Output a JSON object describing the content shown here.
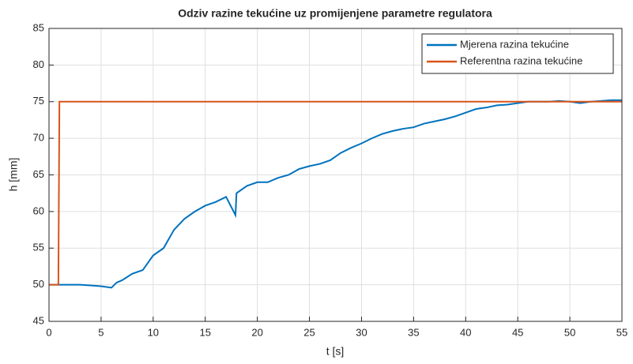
{
  "chart_data": {
    "type": "line",
    "title": "Odziv razine tekućine uz promijenjene parametre regulatora",
    "xlabel": "t [s]",
    "ylabel": "h [mm]",
    "xlim": [
      0,
      55
    ],
    "xticks": [
      0,
      5,
      10,
      15,
      20,
      25,
      30,
      35,
      40,
      45,
      50,
      55
    ],
    "ylim": [
      45,
      85
    ],
    "yticks": [
      45,
      50,
      55,
      60,
      65,
      70,
      75,
      80,
      85
    ],
    "grid": true,
    "legend": "northeast",
    "series": [
      {
        "name": "Mjerena razina tekućine",
        "color": "#0072bd",
        "x": [
          0,
          1,
          2,
          3,
          4,
          5,
          6,
          6.5,
          7,
          8,
          9,
          10,
          11,
          12,
          13,
          14,
          15,
          16,
          17,
          17.9,
          18,
          19,
          20,
          21,
          22,
          23,
          24,
          25,
          26,
          27,
          28,
          29,
          30,
          31,
          32,
          33,
          34,
          35,
          36,
          37,
          38,
          39,
          40,
          41,
          42,
          43,
          44,
          45,
          46,
          47,
          48,
          49,
          50,
          51,
          52,
          53,
          54,
          55
        ],
        "values": [
          50,
          50,
          50,
          50,
          49.9,
          49.8,
          49.6,
          50.3,
          50.6,
          51.5,
          52,
          54,
          55,
          57.5,
          59,
          60,
          60.8,
          61.3,
          62,
          59.5,
          62.5,
          63.5,
          64,
          64,
          64.6,
          65,
          65.8,
          66.2,
          66.5,
          67,
          68,
          68.7,
          69.3,
          70,
          70.6,
          71,
          71.3,
          71.5,
          72,
          72.3,
          72.6,
          73,
          73.5,
          74,
          74.2,
          74.5,
          74.6,
          74.8,
          75,
          75,
          75,
          75.1,
          75,
          74.8,
          75,
          75.1,
          75.2,
          75.2
        ]
      },
      {
        "name": "Referentna razina tekućine",
        "color": "#d95319",
        "x": [
          0,
          0.9,
          1,
          55
        ],
        "values": [
          50,
          50,
          75,
          75
        ]
      }
    ]
  }
}
